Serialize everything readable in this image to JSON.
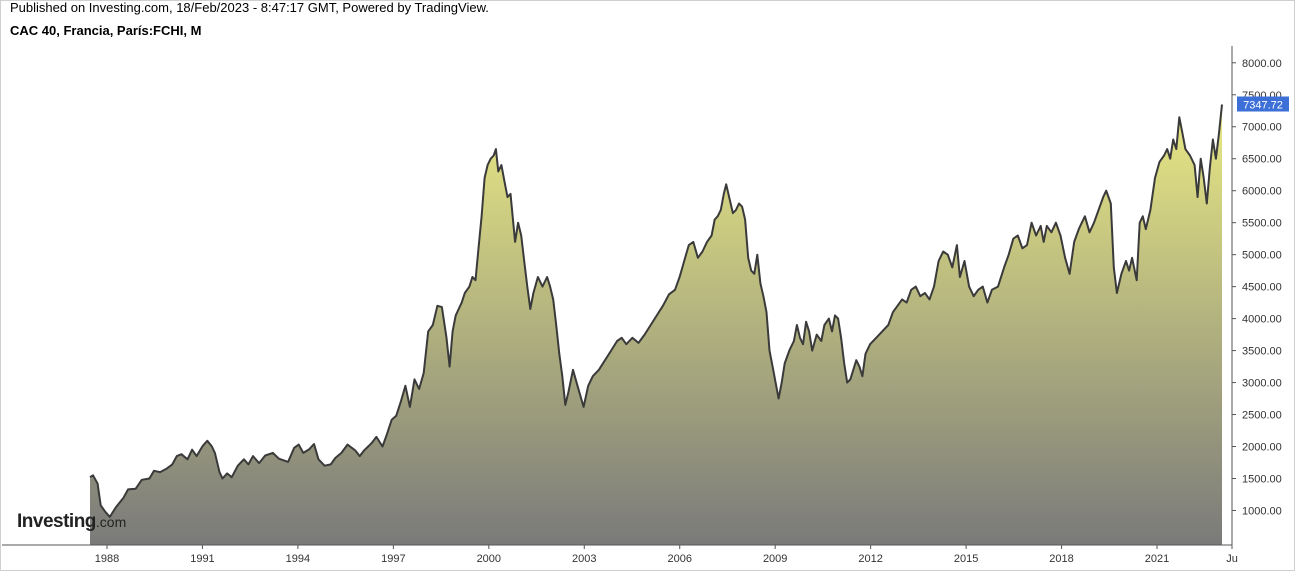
{
  "header": {
    "published": "Published on Investing.com, 18/Feb/2023 - 8:47:17 GMT, Powered by TradingView.",
    "symbol": "CAC 40, Francia, París:FCHI, M"
  },
  "logo": {
    "brand": "Investing",
    "suffix": ".com"
  },
  "chart_data": {
    "type": "area",
    "title": "CAC 40, Francia, París:FCHI, M",
    "x_unit": "year",
    "xlim": [
      1987.1,
      2023.55
    ],
    "ylim": [
      460,
      8200
    ],
    "y_ticks": [
      1000,
      1500,
      2000,
      2500,
      3000,
      3500,
      4000,
      4500,
      5000,
      5500,
      6000,
      6500,
      7000,
      7500,
      8000
    ],
    "y_tick_labels": [
      "1000.00",
      "1500.00",
      "2000.00",
      "2500.00",
      "3000.00",
      "3500.00",
      "4000.00",
      "4500.00",
      "5000.00",
      "5500.00",
      "6000.00",
      "6500.00",
      "7000.00",
      "7500.00",
      "8000.00"
    ],
    "x_ticks": [
      1988,
      1991,
      1994,
      1997,
      2000,
      2003,
      2006,
      2009,
      2012,
      2015,
      2018,
      2021,
      2023.5
    ],
    "x_tick_labels": [
      "1988",
      "1991",
      "1994",
      "1997",
      "2000",
      "2003",
      "2006",
      "2009",
      "2012",
      "2015",
      "2018",
      "2021",
      "Ju"
    ],
    "last_value": 7347.72,
    "last_value_label": "7347.72",
    "grid": false,
    "colors": {
      "line": "#3a3a3a",
      "fill_top": "#e9e984",
      "fill_bottom": "#7a7a7a",
      "badge": "#3c6fd8",
      "axis": "#555555"
    },
    "series": [
      {
        "points": [
          [
            1987.5,
            1520
          ],
          [
            1987.6,
            1550
          ],
          [
            1987.75,
            1420
          ],
          [
            1987.85,
            1080
          ],
          [
            1988.0,
            980
          ],
          [
            1988.15,
            900
          ],
          [
            1988.35,
            1050
          ],
          [
            1988.6,
            1200
          ],
          [
            1988.75,
            1330
          ],
          [
            1989.0,
            1340
          ],
          [
            1989.2,
            1480
          ],
          [
            1989.45,
            1500
          ],
          [
            1989.6,
            1620
          ],
          [
            1989.8,
            1600
          ],
          [
            1990.0,
            1650
          ],
          [
            1990.2,
            1720
          ],
          [
            1990.35,
            1850
          ],
          [
            1990.5,
            1880
          ],
          [
            1990.7,
            1800
          ],
          [
            1990.85,
            1950
          ],
          [
            1991.0,
            1850
          ],
          [
            1991.2,
            2010
          ],
          [
            1991.35,
            2090
          ],
          [
            1991.5,
            2000
          ],
          [
            1991.6,
            1900
          ],
          [
            1991.75,
            1600
          ],
          [
            1991.85,
            1500
          ],
          [
            1992.0,
            1580
          ],
          [
            1992.15,
            1520
          ],
          [
            1992.35,
            1700
          ],
          [
            1992.55,
            1800
          ],
          [
            1992.7,
            1720
          ],
          [
            1992.85,
            1850
          ],
          [
            1993.05,
            1740
          ],
          [
            1993.25,
            1860
          ],
          [
            1993.5,
            1900
          ],
          [
            1993.7,
            1810
          ],
          [
            1994.0,
            1760
          ],
          [
            1994.2,
            1980
          ],
          [
            1994.35,
            2030
          ],
          [
            1994.5,
            1900
          ],
          [
            1994.7,
            1960
          ],
          [
            1994.85,
            2040
          ],
          [
            1995.0,
            1800
          ],
          [
            1995.2,
            1700
          ],
          [
            1995.4,
            1720
          ],
          [
            1995.55,
            1820
          ],
          [
            1995.75,
            1900
          ],
          [
            1995.95,
            2030
          ],
          [
            1996.2,
            1940
          ],
          [
            1996.35,
            1850
          ],
          [
            1996.5,
            1940
          ],
          [
            1996.65,
            2010
          ],
          [
            1996.75,
            2060
          ],
          [
            1996.9,
            2150
          ],
          [
            1997.1,
            2000
          ],
          [
            1997.25,
            2200
          ],
          [
            1997.4,
            2420
          ],
          [
            1997.55,
            2480
          ],
          [
            1997.7,
            2700
          ],
          [
            1997.85,
            2950
          ],
          [
            1998.0,
            2620
          ],
          [
            1998.15,
            3050
          ],
          [
            1998.3,
            2900
          ],
          [
            1998.45,
            3150
          ],
          [
            1998.6,
            3800
          ],
          [
            1998.75,
            3900
          ],
          [
            1998.9,
            4200
          ],
          [
            1999.05,
            4180
          ],
          [
            1999.2,
            3700
          ],
          [
            1999.3,
            3250
          ],
          [
            1999.4,
            3800
          ],
          [
            1999.5,
            4050
          ],
          [
            1999.6,
            4150
          ],
          [
            1999.7,
            4250
          ],
          [
            1999.8,
            4400
          ],
          [
            1999.95,
            4500
          ],
          [
            2000.05,
            4650
          ],
          [
            2000.15,
            4600
          ],
          [
            2000.25,
            5100
          ],
          [
            2000.35,
            5600
          ],
          [
            2000.45,
            6200
          ],
          [
            2000.55,
            6400
          ],
          [
            2000.65,
            6500
          ],
          [
            2000.75,
            6550
          ],
          [
            2000.82,
            6650
          ],
          [
            2000.9,
            6300
          ],
          [
            2001.0,
            6400
          ],
          [
            2001.1,
            6150
          ],
          [
            2001.2,
            5900
          ],
          [
            2001.3,
            5950
          ],
          [
            2001.45,
            5200
          ],
          [
            2001.55,
            5500
          ],
          [
            2001.65,
            5300
          ],
          [
            2001.75,
            4900
          ],
          [
            2001.85,
            4500
          ],
          [
            2001.95,
            4150
          ],
          [
            2002.05,
            4400
          ],
          [
            2002.2,
            4650
          ],
          [
            2002.35,
            4500
          ],
          [
            2002.5,
            4650
          ],
          [
            2002.6,
            4500
          ],
          [
            2002.7,
            4300
          ],
          [
            2002.8,
            3900
          ],
          [
            2002.9,
            3450
          ],
          [
            2003.0,
            3100
          ],
          [
            2003.1,
            2650
          ],
          [
            2003.2,
            2850
          ],
          [
            2003.35,
            3200
          ],
          [
            2003.5,
            2950
          ],
          [
            2003.7,
            2620
          ],
          [
            2003.85,
            2950
          ],
          [
            2004.0,
            3100
          ],
          [
            2004.2,
            3200
          ],
          [
            2004.4,
            3350
          ],
          [
            2004.6,
            3500
          ],
          [
            2004.8,
            3650
          ],
          [
            2004.95,
            3700
          ],
          [
            2005.1,
            3600
          ],
          [
            2005.3,
            3700
          ],
          [
            2005.5,
            3620
          ],
          [
            2005.7,
            3750
          ],
          [
            2005.9,
            3900
          ],
          [
            2006.1,
            4050
          ],
          [
            2006.3,
            4200
          ],
          [
            2006.5,
            4380
          ],
          [
            2006.7,
            4450
          ],
          [
            2006.85,
            4650
          ],
          [
            2007.0,
            4900
          ],
          [
            2007.15,
            5150
          ],
          [
            2007.3,
            5200
          ],
          [
            2007.45,
            4950
          ],
          [
            2007.6,
            5050
          ],
          [
            2007.75,
            5200
          ],
          [
            2007.9,
            5300
          ],
          [
            2008.0,
            5550
          ],
          [
            2008.1,
            5600
          ],
          [
            2008.2,
            5700
          ],
          [
            2008.3,
            5950
          ],
          [
            2008.38,
            6100
          ],
          [
            2008.5,
            5850
          ],
          [
            2008.6,
            5650
          ],
          [
            2008.7,
            5700
          ],
          [
            2008.8,
            5800
          ],
          [
            2008.9,
            5750
          ],
          [
            2009.0,
            5550
          ],
          [
            2009.1,
            4950
          ],
          [
            2009.2,
            4750
          ],
          [
            2009.3,
            4700
          ],
          [
            2009.4,
            5000
          ],
          [
            2009.5,
            4550
          ],
          [
            2009.6,
            4350
          ],
          [
            2009.7,
            4100
          ],
          [
            2009.8,
            3500
          ],
          [
            2009.9,
            3250
          ],
          [
            2010.0,
            3000
          ],
          [
            2010.1,
            2750
          ],
          [
            2010.2,
            3000
          ],
          [
            2010.3,
            3300
          ],
          [
            2010.45,
            3500
          ],
          [
            2010.6,
            3650
          ],
          [
            2010.7,
            3900
          ],
          [
            2010.8,
            3700
          ],
          [
            2010.9,
            3600
          ],
          [
            2011.0,
            3950
          ],
          [
            2011.1,
            3800
          ],
          [
            2011.2,
            3500
          ],
          [
            2011.35,
            3750
          ],
          [
            2011.5,
            3650
          ],
          [
            2011.6,
            3900
          ],
          [
            2011.75,
            4000
          ],
          [
            2011.85,
            3800
          ],
          [
            2011.95,
            4050
          ],
          [
            2012.05,
            4000
          ],
          [
            2012.15,
            3700
          ],
          [
            2012.25,
            3300
          ],
          [
            2012.35,
            3000
          ],
          [
            2012.45,
            3050
          ],
          [
            2012.55,
            3200
          ],
          [
            2012.65,
            3350
          ],
          [
            2012.75,
            3250
          ],
          [
            2012.85,
            3100
          ],
          [
            2012.95,
            3450
          ],
          [
            2013.1,
            3600
          ],
          [
            2013.3,
            3700
          ],
          [
            2013.5,
            3800
          ],
          [
            2013.7,
            3900
          ],
          [
            2013.85,
            4100
          ],
          [
            2014.0,
            4200
          ],
          [
            2014.15,
            4300
          ],
          [
            2014.3,
            4250
          ],
          [
            2014.45,
            4450
          ],
          [
            2014.6,
            4500
          ],
          [
            2014.75,
            4350
          ],
          [
            2014.9,
            4400
          ],
          [
            2015.05,
            4300
          ],
          [
            2015.2,
            4500
          ],
          [
            2015.35,
            4900
          ],
          [
            2015.5,
            5050
          ],
          [
            2015.65,
            5000
          ],
          [
            2015.8,
            4800
          ],
          [
            2015.95,
            5150
          ],
          [
            2016.05,
            4650
          ],
          [
            2016.2,
            4900
          ],
          [
            2016.35,
            4500
          ],
          [
            2016.5,
            4350
          ],
          [
            2016.65,
            4450
          ],
          [
            2016.8,
            4500
          ],
          [
            2016.95,
            4250
          ],
          [
            2017.1,
            4450
          ],
          [
            2017.3,
            4500
          ],
          [
            2017.5,
            4800
          ],
          [
            2017.65,
            5000
          ],
          [
            2017.8,
            5250
          ],
          [
            2017.95,
            5300
          ],
          [
            2018.1,
            5100
          ],
          [
            2018.25,
            5150
          ],
          [
            2018.4,
            5500
          ],
          [
            2018.55,
            5300
          ],
          [
            2018.7,
            5450
          ],
          [
            2018.8,
            5200
          ],
          [
            2018.9,
            5450
          ],
          [
            2019.05,
            5350
          ],
          [
            2019.2,
            5500
          ],
          [
            2019.35,
            5300
          ],
          [
            2019.5,
            4950
          ],
          [
            2019.65,
            4700
          ],
          [
            2019.8,
            5200
          ],
          [
            2019.95,
            5400
          ],
          [
            2020.05,
            5500
          ],
          [
            2020.15,
            5600
          ],
          [
            2020.3,
            5350
          ],
          [
            2020.45,
            5500
          ],
          [
            2020.6,
            5700
          ],
          [
            2020.75,
            5900
          ],
          [
            2020.85,
            6000
          ],
          [
            2021.0,
            5800
          ],
          [
            2021.1,
            4800
          ],
          [
            2021.2,
            4400
          ],
          [
            2021.35,
            4700
          ],
          [
            2021.5,
            4900
          ],
          [
            2021.6,
            4750
          ],
          [
            2021.7,
            4950
          ],
          [
            2021.85,
            4600
          ],
          [
            2021.95,
            5500
          ],
          [
            2022.05,
            5600
          ],
          [
            2022.15,
            5400
          ],
          [
            2022.3,
            5700
          ],
          [
            2022.45,
            6200
          ],
          [
            2022.6,
            6450
          ],
          [
            2022.75,
            6550
          ],
          [
            2022.85,
            6650
          ],
          [
            2022.95,
            6500
          ],
          [
            2023.05,
            6800
          ],
          [
            2023.15,
            6650
          ],
          [
            2023.25,
            7150
          ],
          [
            2023.35,
            6900
          ],
          [
            2023.45,
            6650
          ],
          [
            2023.6,
            6550
          ],
          [
            2023.75,
            6400
          ],
          [
            2023.85,
            5900
          ],
          [
            2023.95,
            6500
          ],
          [
            2024.05,
            6200
          ],
          [
            2024.15,
            5800
          ],
          [
            2024.25,
            6350
          ],
          [
            2024.35,
            6800
          ],
          [
            2024.45,
            6500
          ],
          [
            2024.55,
            6900
          ],
          [
            2024.65,
            7347.72
          ]
        ]
      }
    ]
  }
}
